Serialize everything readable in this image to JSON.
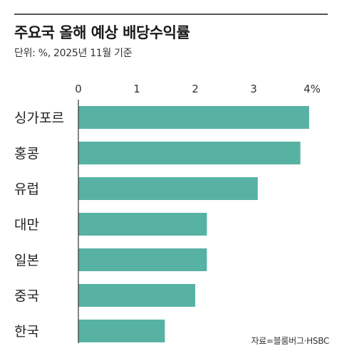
{
  "header": {
    "title": "주요국 올해 예상 배당수익률",
    "subtitle": "단위: %, 2025년 11월 기준"
  },
  "footer": {
    "source": "자료=블룸버그·HSBC"
  },
  "colors": {
    "bar": "#57b2a4",
    "axis": "#333333",
    "text": "#222222"
  },
  "chart_data": {
    "type": "bar",
    "orientation": "horizontal",
    "categories": [
      "싱가포르",
      "홍콩",
      "유럽",
      "대만",
      "일본",
      "중국",
      "한국"
    ],
    "values": [
      3.95,
      3.8,
      3.07,
      2.2,
      2.2,
      2.0,
      1.48
    ],
    "xlim": [
      0,
      4
    ],
    "tick_values": [
      0,
      1,
      2,
      3,
      4
    ],
    "tick_labels": [
      "0",
      "1",
      "2",
      "3",
      "4%"
    ],
    "title": "주요국 올해 예상 배당수익률",
    "xlabel": "",
    "ylabel": ""
  }
}
